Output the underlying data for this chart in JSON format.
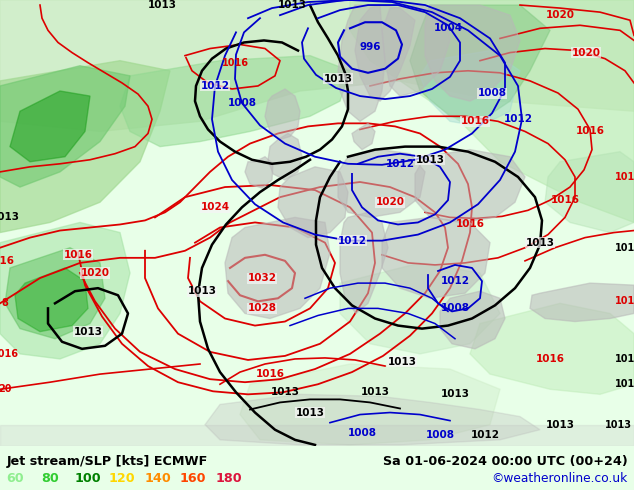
{
  "title_left": "Jet stream/SLP [kts] ECMWF",
  "title_right": "Sa 01-06-2024 00:00 UTC (00+24)",
  "credit": "©weatheronline.co.uk",
  "legend_values": [
    60,
    80,
    100,
    120,
    140,
    160,
    180
  ],
  "legend_colors": [
    "#90ee90",
    "#32cd32",
    "#008000",
    "#ffd700",
    "#ff8c00",
    "#ff4500",
    "#dc143c"
  ],
  "bg_color": "#f0f0f0",
  "map_bg": "#f5f5f5",
  "bottom_bar_color": "#e8ffe8",
  "label_color_left": "#000000",
  "label_color_right": "#000000",
  "credit_color": "#0000cc",
  "pressure_red_color": "#dd0000",
  "pressure_blue_color": "#0000cc",
  "pressure_black_color": "#000000",
  "figsize": [
    6.34,
    4.9
  ],
  "dpi": 100
}
